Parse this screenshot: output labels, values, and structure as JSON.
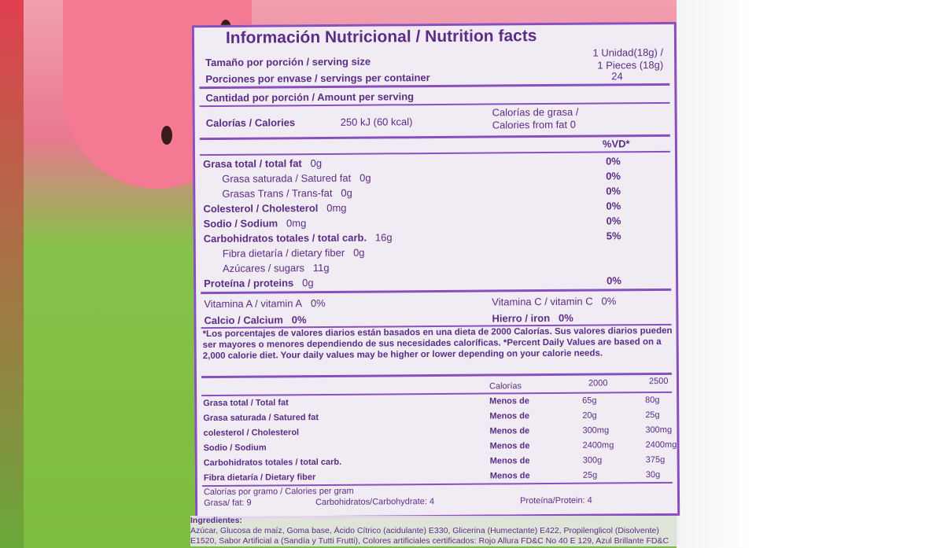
{
  "title": "Información Nutricional / Nutrition facts",
  "serving_size": {
    "label": "Tamaño por porción / serving size",
    "value_line1": "1 Unidad(18g) /",
    "value_line2": "1 Pieces (18g)"
  },
  "servings": {
    "label": "Porciones por envase / servings per container",
    "value": "24"
  },
  "amount_per_serving": "Cantidad por porción / Amount per serving",
  "calories": {
    "label": "Calorías / Calories",
    "value": "250 kJ (60 kcal)",
    "fat_line1": "Calorías de grasa /",
    "fat_line2": "Calories from fat 0"
  },
  "dv_header": "%VD*",
  "nutrients": [
    {
      "label": "Grasa total / total fat",
      "amount": "0g",
      "dv": "0%"
    },
    {
      "label": "Grasa saturada / Satured fat",
      "amount": "0g",
      "dv": "0%"
    },
    {
      "label": "Grasas Trans / Trans-fat",
      "amount": "0g",
      "dv": "0%"
    },
    {
      "label": "Colesterol / Cholesterol",
      "amount": "0mg",
      "dv": "0%"
    },
    {
      "label": "Sodio / Sodium",
      "amount": "0mg",
      "dv": "0%"
    },
    {
      "label": "Carbohidratos totales / total carb.",
      "amount": "16g",
      "dv": "5%"
    },
    {
      "label": "Fibra dietaría / dietary fiber",
      "amount": "0g",
      "dv": ""
    },
    {
      "label": "Azúcares / sugars",
      "amount": "11g",
      "dv": ""
    },
    {
      "label": "Proteína / proteins",
      "amount": "0g",
      "dv": "0%"
    }
  ],
  "vitamins": [
    {
      "label": "Vitamina A / vitamin A",
      "value": "0%"
    },
    {
      "label": "Vitamina C / vitamin C",
      "value": "0%"
    },
    {
      "label": "Calcio / Calcium",
      "value": "0%"
    },
    {
      "label": "Hierro / iron",
      "value": "0%"
    }
  ],
  "footnote": "*Los porcentajes de valores diarios están basados en una dieta de 2000 Calorías. Sus valores diarios pueden ser mayores o menores dependiendo de sus necesidades caloríficas. *Percent Daily Values are based on a 2,000 calorie diet. Your daily values may be higher or lower depending on your calorie needs.",
  "dv_table": {
    "header": [
      "Calorías",
      "2000",
      "2500"
    ],
    "rows": [
      [
        "Grasa total / Total fat",
        "Menos de",
        "65g",
        "80g"
      ],
      [
        "Grasa saturada / Satured fat",
        "Menos de",
        "20g",
        "25g"
      ],
      [
        "colesterol / Cholesterol",
        "Menos de",
        "300mg",
        "300mg"
      ],
      [
        "Sodio / Sodium",
        "Menos de",
        "2400mg",
        "2400mg"
      ],
      [
        "Carbohidratos totales / total carb.",
        "Menos de",
        "300g",
        "375g"
      ],
      [
        "Fibra dietaría / Dietary fiber",
        "Menos de",
        "25g",
        "30g"
      ]
    ]
  },
  "cal_per_gram": {
    "title": "Calorías por gramo / Calories per gram",
    "fat": "Grasa/ fat: 9",
    "carb": "Carbohidratos/Carbohydrate: 4",
    "protein": "Proteína/Protein: 4"
  },
  "ingredients": {
    "title": "Ingredientes:",
    "text": "Azúcar, Glucosa de maíz, Goma base, Ácido Cítrico (acidulante) E330, Glicerina (Humectante) E422, Propilenglicol (Disolvente) E1520, Sabor Artificial a (Sandía y Tutti Frutti), Colores artificiales certificados: Rojo Allura FD&C No 40 E 129, Azul Brillante FD&C"
  }
}
